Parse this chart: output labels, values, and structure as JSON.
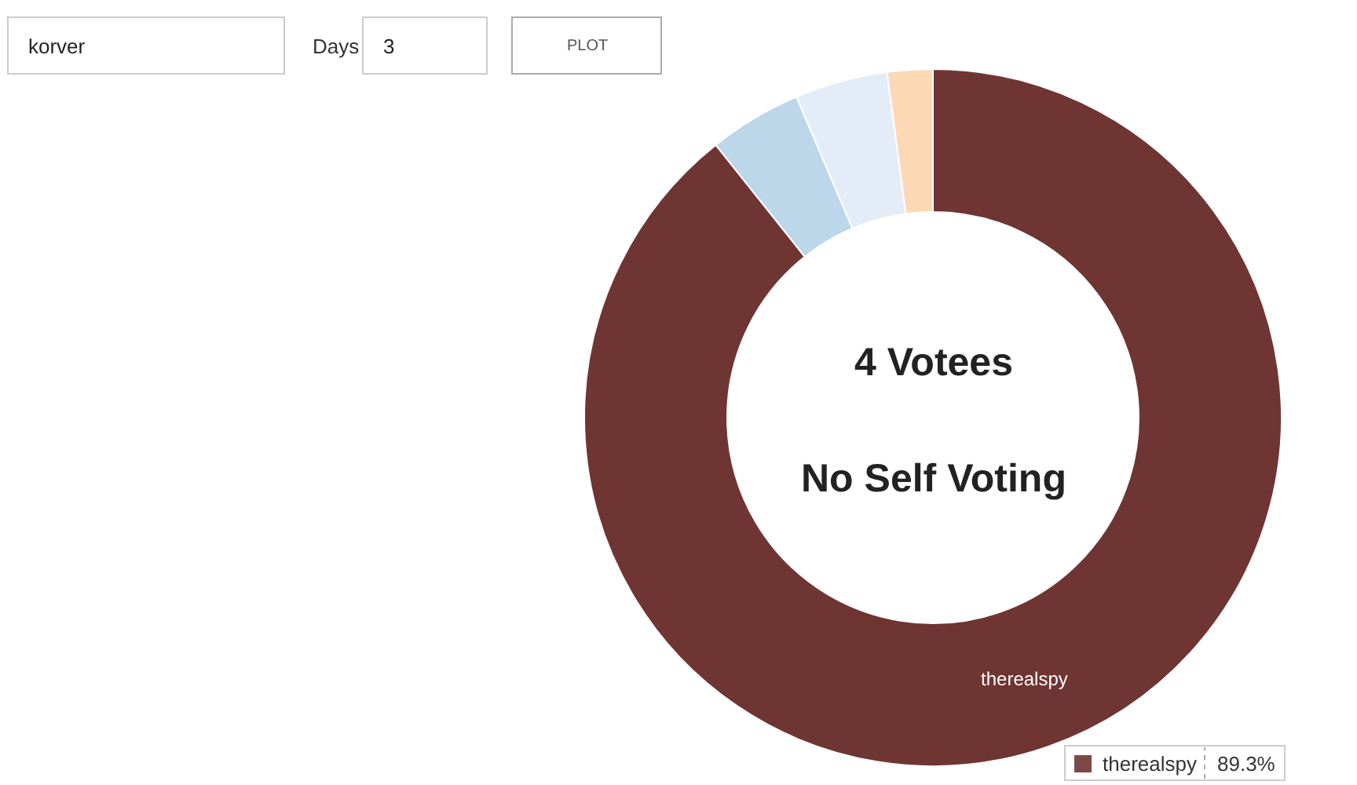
{
  "chart_data": {
    "type": "donut",
    "title": "4 Votees",
    "subtitle": "No Self Voting",
    "categories": [
      "therealspy",
      null,
      null,
      null
    ],
    "values": [
      89.3,
      4.3,
      4.3,
      2.1
    ],
    "colors": [
      "#6f3533",
      "#bcd6ea",
      "#e4ecf7",
      "#fdd8b5"
    ],
    "value_labels": [
      "89.3%",
      null,
      null,
      null
    ],
    "annotations": [
      "korver",
      "Days",
      "3",
      "PLOT"
    ]
  }
}
